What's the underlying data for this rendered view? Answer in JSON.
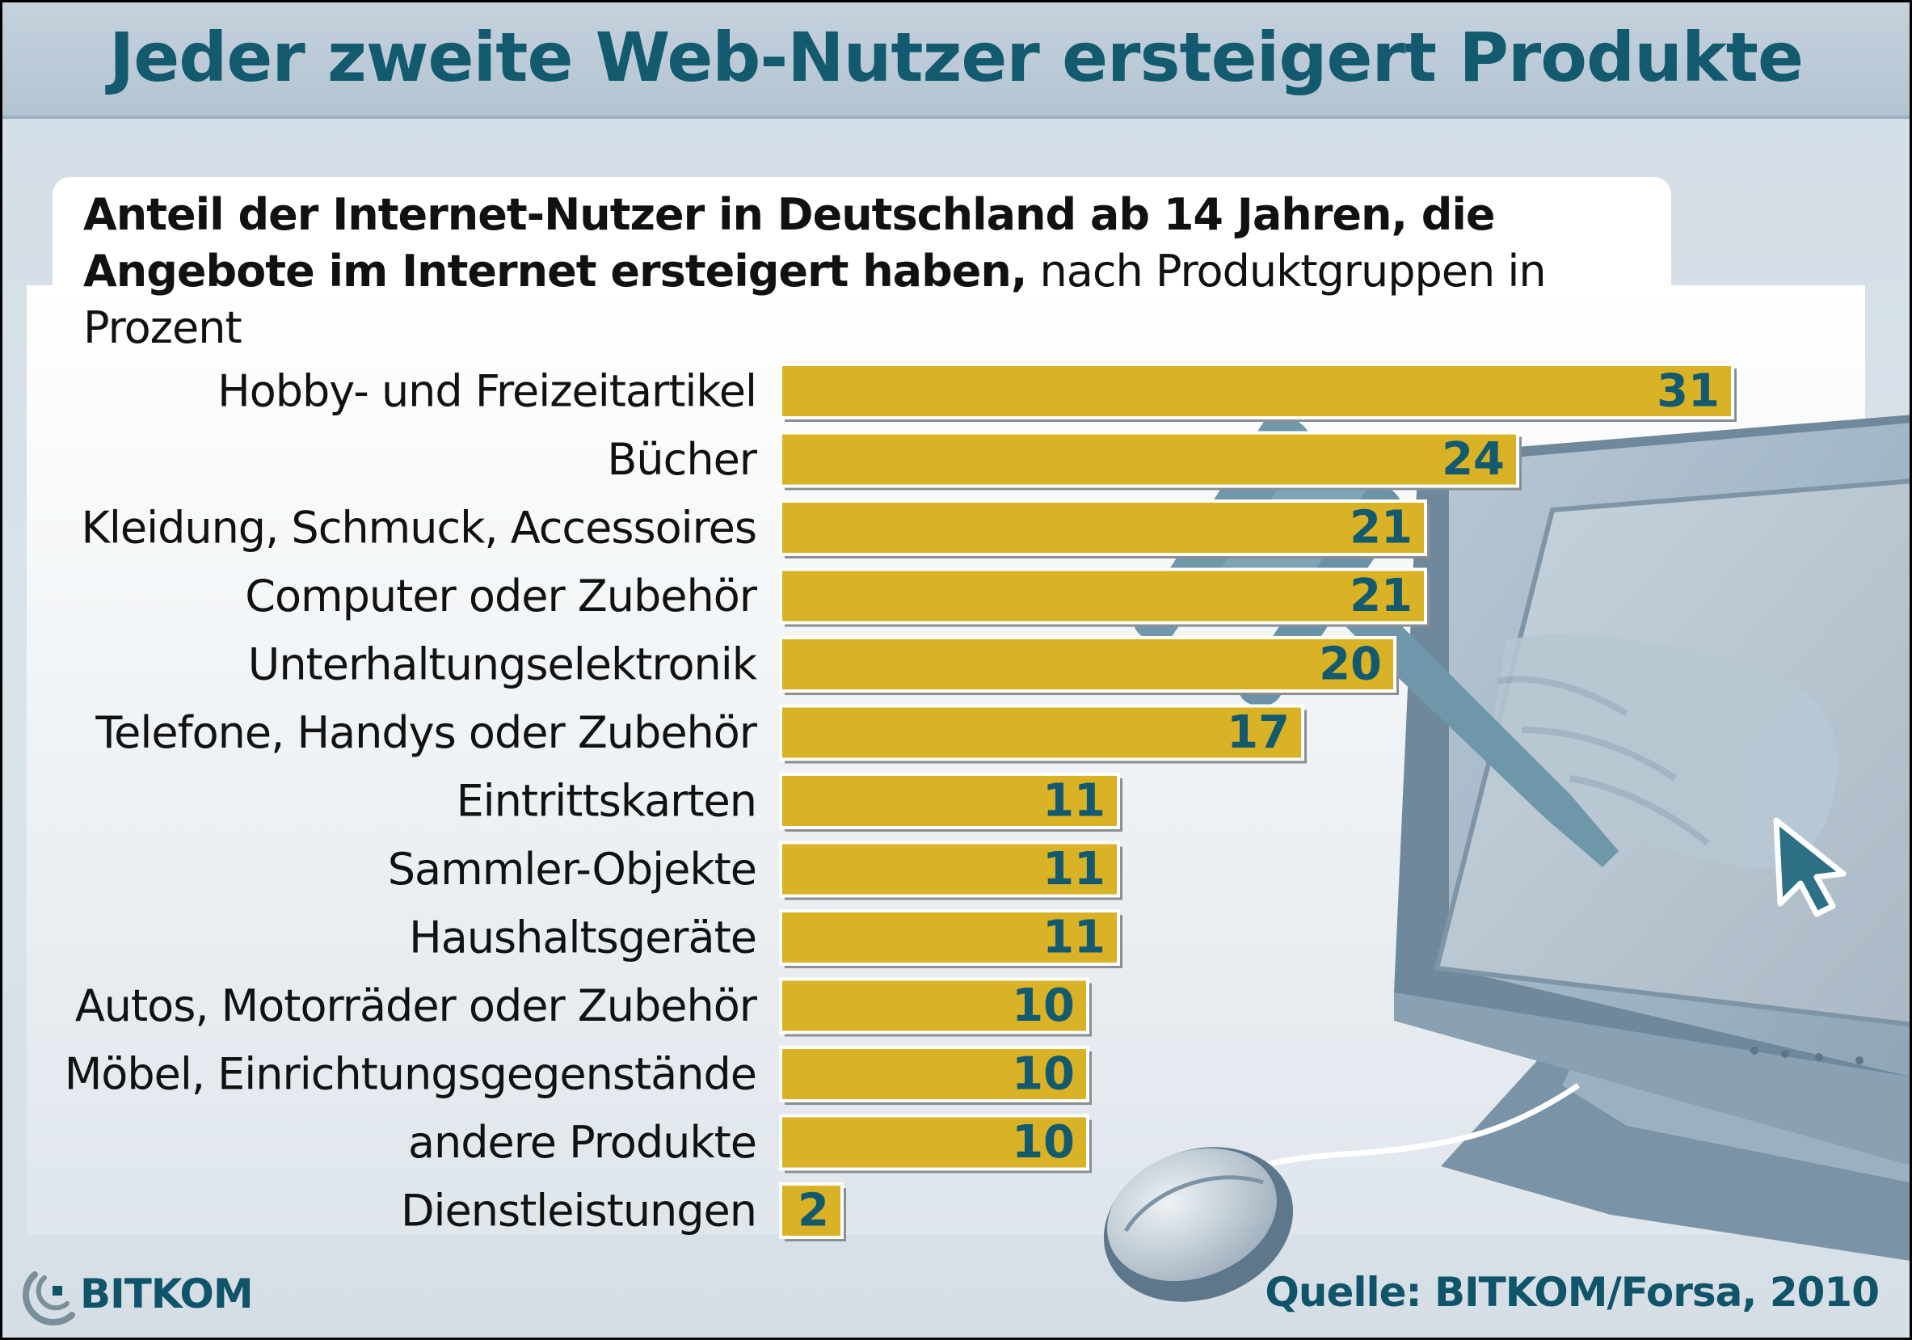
{
  "title": "Jeder zweite Web-Nutzer ersteigert Produkte",
  "subtitle": {
    "bold": "Anteil der Internet-Nutzer in Deutschland ab 14 Jahren, die Angebote im Internet ersteigert haben,",
    "normal": " nach Produktgruppen in Prozent"
  },
  "chart_data": {
    "type": "bar",
    "orientation": "horizontal",
    "title": "Jeder zweite Web-Nutzer ersteigert Produkte",
    "subtitle": "Anteil der Internet-Nutzer in Deutschland ab 14 Jahren, die Angebote im Internet ersteigert haben, nach Produktgruppen in Prozent",
    "categories": [
      "Hobby- und Freizeitartikel",
      "Bücher",
      "Kleidung, Schmuck, Accessoires",
      "Computer oder Zubehör",
      "Unterhaltungselektronik",
      "Telefone, Handys oder Zubehör",
      "Eintrittskarten",
      "Sammler-Objekte",
      "Haushaltsgeräte",
      "Autos, Motorräder oder Zubehör",
      "Möbel, Einrichtungsgegenstände",
      "andere Produkte",
      "Dienstleistungen"
    ],
    "values": [
      31,
      24,
      21,
      21,
      20,
      17,
      11,
      11,
      11,
      10,
      10,
      10,
      2
    ],
    "unit": "%",
    "xlim": [
      0,
      31
    ],
    "grid": false,
    "bar_color": "#d9b225",
    "label_color": "#135a6f"
  },
  "logo": {
    "text": "BITKOM"
  },
  "source": "Quelle: BITKOM/Forsa, 2010",
  "icons": [
    "monitor-icon",
    "gavel-icon",
    "hand-icon",
    "cursor-arrow-icon",
    "mouse-icon"
  ]
}
